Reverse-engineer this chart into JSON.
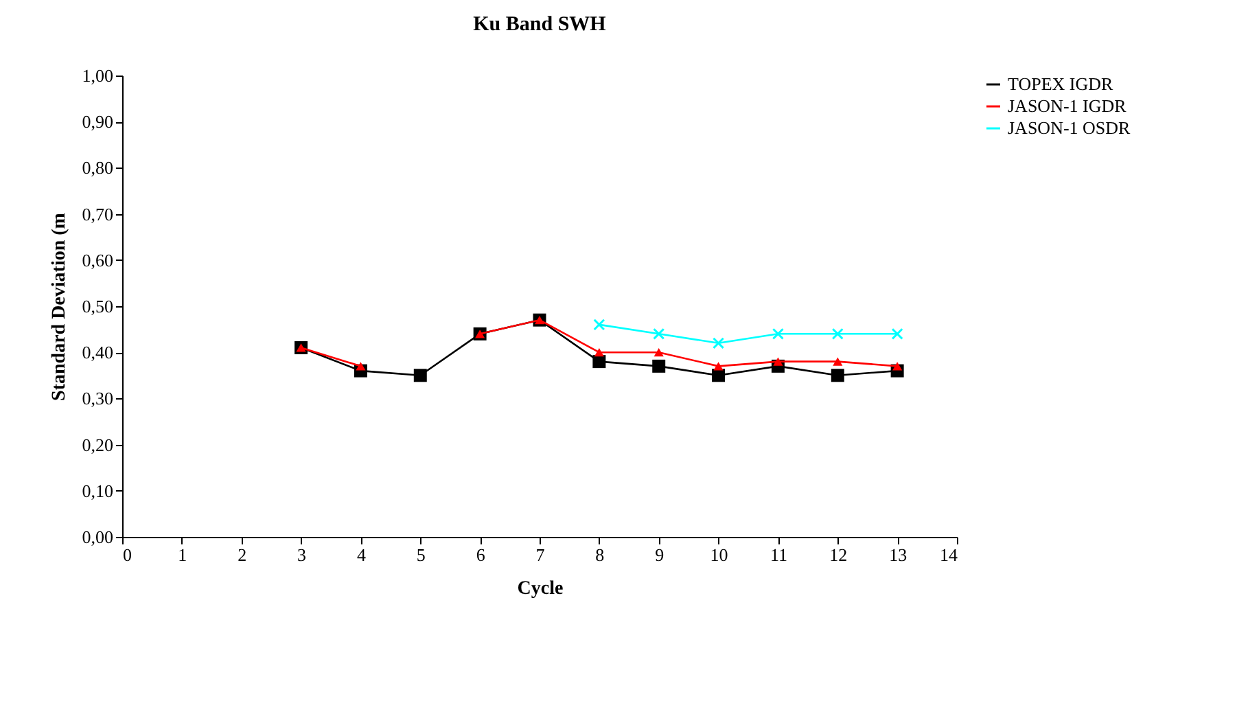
{
  "chart_data": {
    "type": "line",
    "title": "Ku Band SWH",
    "xlabel": "Cycle",
    "ylabel": "Standard Deviation (m",
    "x": [
      3,
      4,
      5,
      6,
      7,
      8,
      9,
      10,
      11,
      12,
      13
    ],
    "series": [
      {
        "name": "TOPEX IGDR",
        "color": "#000000",
        "marker": "square",
        "values": [
          0.41,
          0.36,
          0.35,
          0.44,
          0.47,
          0.38,
          0.37,
          0.35,
          0.37,
          0.35,
          0.36
        ]
      },
      {
        "name": "JASON-1 IGDR",
        "color": "#ff0000",
        "marker": "triangle",
        "values": [
          0.41,
          0.37,
          null,
          0.44,
          0.47,
          0.4,
          0.4,
          0.37,
          0.38,
          0.38,
          0.37
        ]
      },
      {
        "name": "JASON-1 OSDR",
        "color": "#00ffff",
        "marker": "cross",
        "values": [
          null,
          null,
          null,
          null,
          null,
          0.46,
          0.44,
          0.42,
          0.44,
          0.44,
          0.44
        ]
      }
    ],
    "xlim": [
      0,
      14
    ],
    "xticks": [
      0,
      1,
      2,
      3,
      4,
      5,
      6,
      7,
      8,
      9,
      10,
      11,
      12,
      13,
      14
    ],
    "ylim": [
      0,
      1
    ],
    "yticks": [
      {
        "value": 0,
        "label": "0,00"
      },
      {
        "value": 0.1,
        "label": "0,10"
      },
      {
        "value": 0.2,
        "label": "0,20"
      },
      {
        "value": 0.3,
        "label": "0,30"
      },
      {
        "value": 0.4,
        "label": "0,40"
      },
      {
        "value": 0.5,
        "label": "0,50"
      },
      {
        "value": 0.6,
        "label": "0,60"
      },
      {
        "value": 0.7,
        "label": "0,70"
      },
      {
        "value": 0.8,
        "label": "0,80"
      },
      {
        "value": 0.9,
        "label": "0,90"
      },
      {
        "value": 1,
        "label": "1,00"
      }
    ],
    "grid": false,
    "legend": "right",
    "line_style": "solid"
  }
}
